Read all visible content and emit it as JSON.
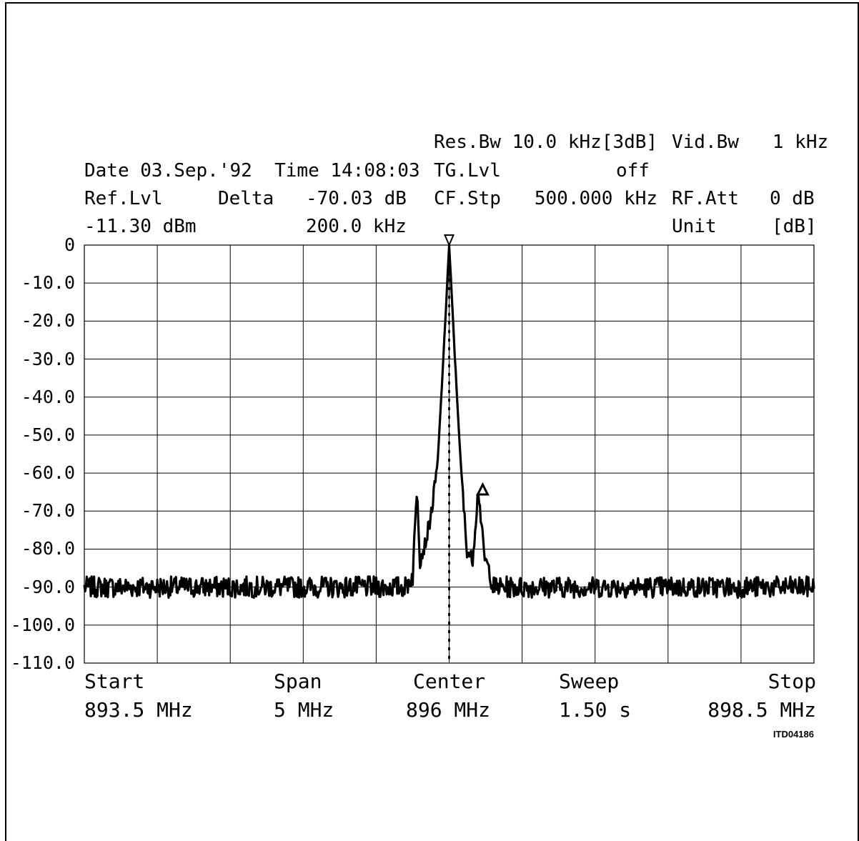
{
  "header": {
    "res_bw": "Res.Bw 10.0 kHz[3dB]",
    "vid_bw": "Vid.Bw   1 kHz",
    "date_time": "Date 03.Sep.'92  Time 14:08:03",
    "tg_lvl_label": "TG.Lvl",
    "tg_lvl_value": "off",
    "ref_lvl_label": "Ref.Lvl",
    "delta_label": "Delta",
    "delta_value": "-70.03 dB",
    "cf_stp": "CF.Stp   500.000 kHz",
    "rf_att_label": "RF.Att",
    "rf_att_value": "0 dB",
    "ref_lvl_value": "-11.30 dBm",
    "delta_freq": "200.0 kHz",
    "unit_label": "Unit",
    "unit_value": "[dB]"
  },
  "footer": {
    "start_label": "Start",
    "start_value": "893.5 MHz",
    "span_label": "Span",
    "span_value": "5 MHz",
    "center_label": "Center",
    "center_value": "896 MHz",
    "sweep_label": "Sweep",
    "sweep_value": "1.50 s",
    "stop_label": "Stop",
    "stop_value": "898.5 MHz"
  },
  "figure_id": "ITD04186",
  "chart_data": {
    "type": "line",
    "xlim": [
      893.5,
      898.5
    ],
    "ylim": [
      -110,
      0
    ],
    "yticks": [
      "0",
      "-10.0",
      "-20.0",
      "-30.0",
      "-40.0",
      "-50.0",
      "-60.0",
      "-70.0",
      "-80.0",
      "-90.0",
      "-100.0",
      "-110.0"
    ],
    "grid": true,
    "noise_floor": -90,
    "series": [
      {
        "x": [
          893.5,
          895.7,
          895.75,
          895.78,
          895.8,
          895.84,
          895.88,
          895.92,
          895.96,
          896.0,
          896.04,
          896.08,
          896.12,
          896.16,
          896.2,
          896.24,
          896.28,
          896.3,
          896.35,
          898.5
        ],
        "values": [
          -90,
          -90,
          -87,
          -63,
          -83,
          -78,
          -70,
          -58,
          -30,
          0,
          -30,
          -58,
          -80,
          -83,
          -64,
          -82,
          -86,
          -90,
          -90,
          -90
        ]
      }
    ],
    "markers": [
      {
        "x": 896.0,
        "y": 0,
        "symbol": "down-triangle"
      },
      {
        "x": 896.23,
        "y": -63,
        "symbol": "up-triangle"
      }
    ],
    "center_line_x": 896.0
  },
  "colors": {
    "trace": "#000000",
    "grid": "#000000",
    "background": "#ffffff"
  }
}
